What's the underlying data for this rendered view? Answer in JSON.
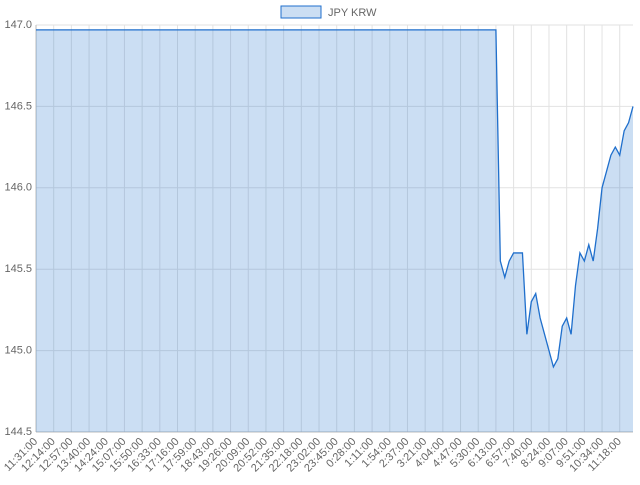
{
  "chart_data": {
    "type": "line",
    "categories": [
      "11:31:00",
      null,
      null,
      null,
      "12:14:00",
      null,
      null,
      null,
      "12:57:00",
      null,
      null,
      null,
      "13:40:00",
      null,
      null,
      null,
      "14:24:00",
      null,
      null,
      null,
      "15:07:00",
      null,
      null,
      null,
      "15:50:00",
      null,
      null,
      null,
      "16:33:00",
      null,
      null,
      null,
      "17:16:00",
      null,
      null,
      null,
      "17:59:00",
      null,
      null,
      null,
      "18:43:00",
      null,
      null,
      null,
      "19:26:00",
      null,
      null,
      null,
      "20:09:00",
      null,
      null,
      null,
      "20:52:00",
      null,
      null,
      null,
      "21:35:00",
      null,
      null,
      null,
      "22:18:00",
      null,
      null,
      null,
      "23:02:00",
      null,
      null,
      null,
      "23:45:00",
      null,
      null,
      null,
      "0:28:00",
      null,
      null,
      null,
      "1:11:00",
      null,
      null,
      null,
      "1:54:00",
      null,
      null,
      null,
      "2:37:00",
      null,
      null,
      null,
      "3:21:00",
      null,
      null,
      null,
      "4:04:00",
      null,
      null,
      null,
      "4:47:00",
      null,
      null,
      null,
      "5:30:00",
      null,
      null,
      null,
      "6:13:00",
      null,
      null,
      null,
      "6:57:00",
      null,
      null,
      null,
      "7:40:00",
      null,
      null,
      null,
      "8:24:00",
      null,
      null,
      null,
      "9:07:00",
      null,
      null,
      null,
      "9:51:00",
      null,
      null,
      null,
      "10:34:00",
      null,
      null,
      null,
      "11:18:00",
      null,
      null,
      null
    ],
    "series": [
      {
        "name": "JPY KRW",
        "color": "#1f6fcc",
        "values": [
          146.97,
          146.97,
          146.97,
          146.97,
          146.97,
          146.97,
          146.97,
          146.97,
          146.97,
          146.97,
          146.97,
          146.97,
          146.97,
          146.97,
          146.97,
          146.97,
          146.97,
          146.97,
          146.97,
          146.97,
          146.97,
          146.97,
          146.97,
          146.97,
          146.97,
          146.97,
          146.97,
          146.97,
          146.97,
          146.97,
          146.97,
          146.97,
          146.97,
          146.97,
          146.97,
          146.97,
          146.97,
          146.97,
          146.97,
          146.97,
          146.97,
          146.97,
          146.97,
          146.97,
          146.97,
          146.97,
          146.97,
          146.97,
          146.97,
          146.97,
          146.97,
          146.97,
          146.97,
          146.97,
          146.97,
          146.97,
          146.97,
          146.97,
          146.97,
          146.97,
          146.97,
          146.97,
          146.97,
          146.97,
          146.97,
          146.97,
          146.97,
          146.97,
          146.97,
          146.97,
          146.97,
          146.97,
          146.97,
          146.97,
          146.97,
          146.97,
          146.97,
          146.97,
          146.97,
          146.97,
          146.97,
          146.97,
          146.97,
          146.97,
          146.97,
          146.97,
          146.97,
          146.97,
          146.97,
          146.97,
          146.97,
          146.97,
          146.97,
          146.97,
          146.97,
          146.97,
          146.97,
          146.97,
          146.97,
          146.97,
          146.97,
          146.97,
          146.97,
          146.97,
          146.97,
          145.55,
          145.45,
          145.55,
          145.6,
          145.6,
          145.6,
          145.1,
          145.3,
          145.35,
          145.2,
          145.1,
          145.0,
          144.9,
          144.95,
          145.15,
          145.2,
          145.1,
          145.4,
          145.6,
          145.55,
          145.65,
          145.55,
          145.75,
          146.0,
          146.1,
          146.2,
          146.25,
          146.2,
          146.35,
          146.4,
          146.5
        ]
      }
    ],
    "ylim": [
      144.5,
      147
    ],
    "yticks": [
      144.5,
      {
        "value": 145,
        "label": "145.0"
      },
      145.5,
      {
        "value": 146,
        "label": "146.0"
      },
      146.5,
      {
        "value": 147,
        "label": "147.0"
      }
    ],
    "grid": true,
    "fill": true,
    "legend": "top"
  }
}
